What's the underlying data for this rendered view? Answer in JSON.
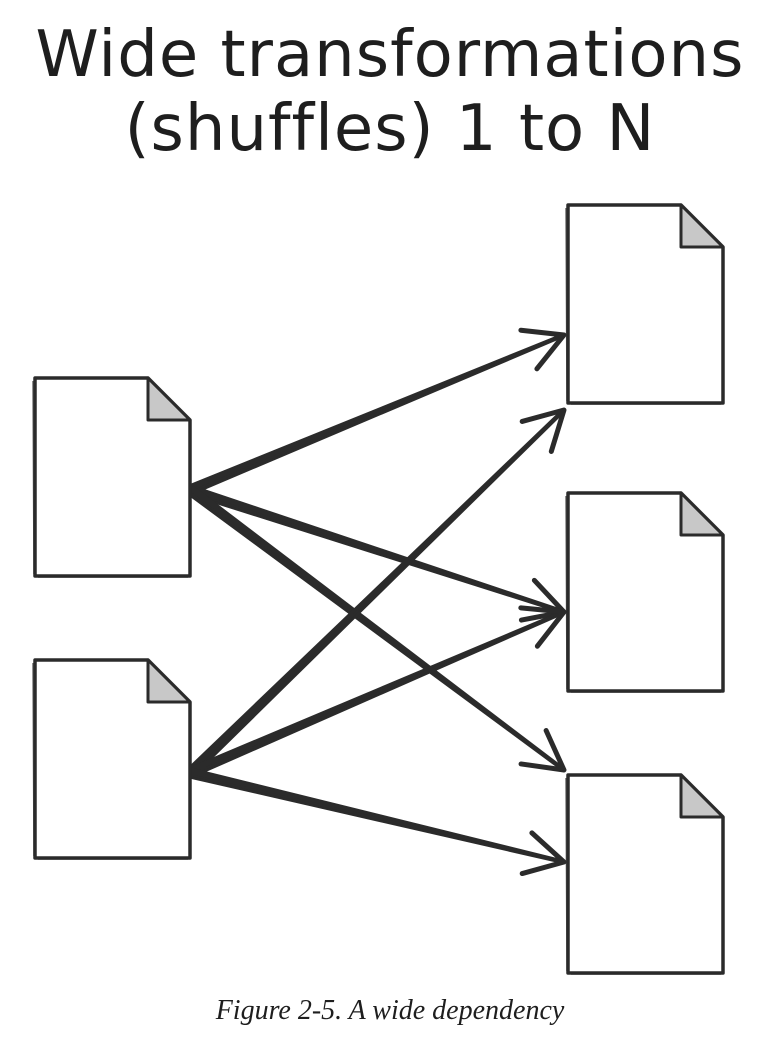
{
  "title": {
    "line1": "Wide transformations",
    "line2": "(shuffles) 1 to N"
  },
  "caption": "Figure 2-5. A wide dependency",
  "colors": {
    "ink": "#2b2b2b",
    "paper": "#ffffff",
    "fold": "#c8c8c8"
  },
  "diagram": {
    "input_partitions": [
      "input-1",
      "input-2"
    ],
    "output_partitions": [
      "output-1",
      "output-2",
      "output-3"
    ],
    "edges": [
      {
        "from": "input-1",
        "to": "output-1"
      },
      {
        "from": "input-1",
        "to": "output-2"
      },
      {
        "from": "input-1",
        "to": "output-3"
      },
      {
        "from": "input-2",
        "to": "output-1"
      },
      {
        "from": "input-2",
        "to": "output-2"
      },
      {
        "from": "input-2",
        "to": "output-3"
      }
    ]
  }
}
